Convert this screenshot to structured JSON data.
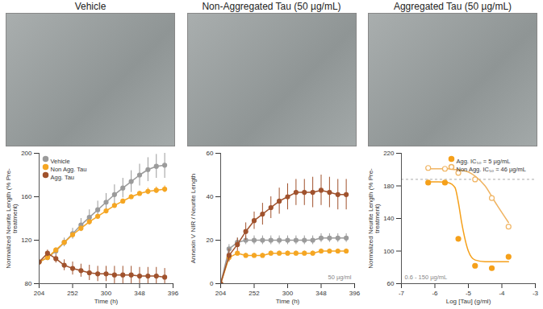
{
  "image_titles": [
    "Vehicle",
    "Non-Aggregated Tau (50 µg/mL)",
    "Aggregated Tau (50 µg/mL)"
  ],
  "chart_data": [
    {
      "type": "line",
      "x_label": "Time (h)",
      "y_label": "Normalized Neurite Length (% Pre-treatment)",
      "x": [
        204,
        216,
        228,
        240,
        252,
        264,
        276,
        288,
        300,
        312,
        324,
        336,
        348,
        360,
        372,
        384
      ],
      "xlim": [
        204,
        396
      ],
      "xticks": [
        204,
        252,
        300,
        348,
        396
      ],
      "ylim": [
        80,
        200
      ],
      "yticks": [
        80,
        120,
        160,
        200
      ],
      "legend": "top-left",
      "series": [
        {
          "name": "Vehicle",
          "color": "#9b9b9b",
          "marker": "circle",
          "values": [
            100,
            104,
            110,
            118,
            126,
            134,
            141,
            148,
            155,
            162,
            168,
            174,
            180,
            185,
            188,
            189
          ],
          "errors": [
            0,
            2,
            3,
            4,
            5,
            6,
            7,
            8,
            8,
            9,
            9,
            10,
            10,
            11,
            11,
            12
          ]
        },
        {
          "name": "Non Agg. Tau",
          "color": "#f5a623",
          "marker": "circle",
          "values": [
            100,
            104,
            111,
            118,
            125,
            131,
            137,
            142,
            147,
            152,
            156,
            160,
            163,
            165,
            166,
            167
          ],
          "errors": [
            0,
            1,
            1,
            1,
            2,
            2,
            2,
            2,
            2,
            2,
            2,
            2,
            2,
            3,
            3,
            3
          ]
        },
        {
          "name": "Agg. Tau",
          "color": "#a0522d",
          "marker": "circle",
          "values": [
            100,
            108,
            103,
            97,
            94,
            92,
            90,
            89,
            89,
            88,
            88,
            88,
            87,
            87,
            87,
            86
          ],
          "errors": [
            0,
            3,
            4,
            5,
            6,
            6,
            7,
            7,
            7,
            8,
            8,
            8,
            8,
            8,
            8,
            8
          ]
        }
      ]
    },
    {
      "type": "line",
      "x_label": "Time (h)",
      "y_label": "Annexin V NIR / Neurite Length",
      "annotation": "50 µg/ml",
      "x": [
        204,
        216,
        228,
        240,
        252,
        264,
        276,
        288,
        300,
        312,
        324,
        336,
        348,
        360,
        372,
        384
      ],
      "xlim": [
        204,
        396
      ],
      "xticks": [
        204,
        252,
        300,
        348,
        396
      ],
      "ylim": [
        0,
        60
      ],
      "yticks": [
        0,
        20,
        40,
        60
      ],
      "series": [
        {
          "name": "Vehicle",
          "color": "#9b9b9b",
          "marker": "circle",
          "values": [
            0,
            16,
            19,
            20,
            20,
            20,
            20,
            20,
            20,
            20,
            20,
            20,
            21,
            21,
            21,
            21
          ],
          "errors": [
            0,
            2,
            2,
            2,
            2,
            2,
            2,
            2,
            2,
            2,
            2,
            2,
            2,
            2,
            2,
            2
          ]
        },
        {
          "name": "Non Agg. Tau",
          "color": "#f5a623",
          "marker": "circle",
          "values": [
            0,
            12,
            14,
            13,
            13,
            13,
            14,
            14,
            14,
            14,
            14,
            14,
            15,
            15,
            15,
            15
          ],
          "errors": [
            0,
            1,
            1,
            1,
            1,
            1,
            1,
            1,
            1,
            1,
            1,
            1,
            1,
            1,
            1,
            1
          ]
        },
        {
          "name": "Agg. Tau",
          "color": "#a0522d",
          "marker": "circle",
          "values": [
            0,
            13,
            18,
            24,
            29,
            32,
            35,
            38,
            40,
            42,
            42,
            42,
            43,
            42,
            41,
            41
          ],
          "errors": [
            0,
            3,
            3,
            4,
            4,
            5,
            5,
            6,
            6,
            6,
            6,
            7,
            7,
            7,
            7,
            7
          ]
        }
      ]
    },
    {
      "type": "scatter",
      "x_label": "Log [Tau] (g/ml)",
      "y_label": "Normalized Neurite Length (% Pre-treatment)",
      "annotation": "0.6 - 150 µg/mL",
      "x": [
        -6.2,
        -5.7,
        -5.3,
        -4.8,
        -4.3,
        -3.8
      ],
      "fit_x": [
        -6.2,
        -5.9,
        -5.6,
        -5.4,
        -5.3,
        -5.2,
        -5.0,
        -4.8,
        -4.5,
        -4.2,
        -3.8
      ],
      "xlim": [
        -7,
        -3
      ],
      "xticks": [
        -7,
        -6,
        -5,
        -4,
        -3
      ],
      "ylim": [
        60,
        220
      ],
      "yticks": [
        60,
        100,
        140,
        180,
        220
      ],
      "reference_value": 188,
      "legend": "top-right",
      "series": [
        {
          "name": "Agg. IC₅₀ = 5 µg/mL",
          "color": "#f5a01a",
          "marker": "circle",
          "values": [
            184,
            184,
            115,
            82,
            79,
            93
          ],
          "fit_values": [
            185,
            185,
            184,
            178,
            160,
            135,
            100,
            89,
            87,
            87,
            87
          ]
        },
        {
          "name": "Non Agg. IC₅₀ = 46 µg/mL",
          "color": "#f0b462",
          "marker": "open_circle",
          "values": [
            202,
            201,
            196,
            188,
            165,
            130
          ],
          "fit_values": [
            201,
            201,
            201,
            200,
            200,
            199,
            197,
            192,
            180,
            160,
            135
          ]
        }
      ]
    }
  ]
}
